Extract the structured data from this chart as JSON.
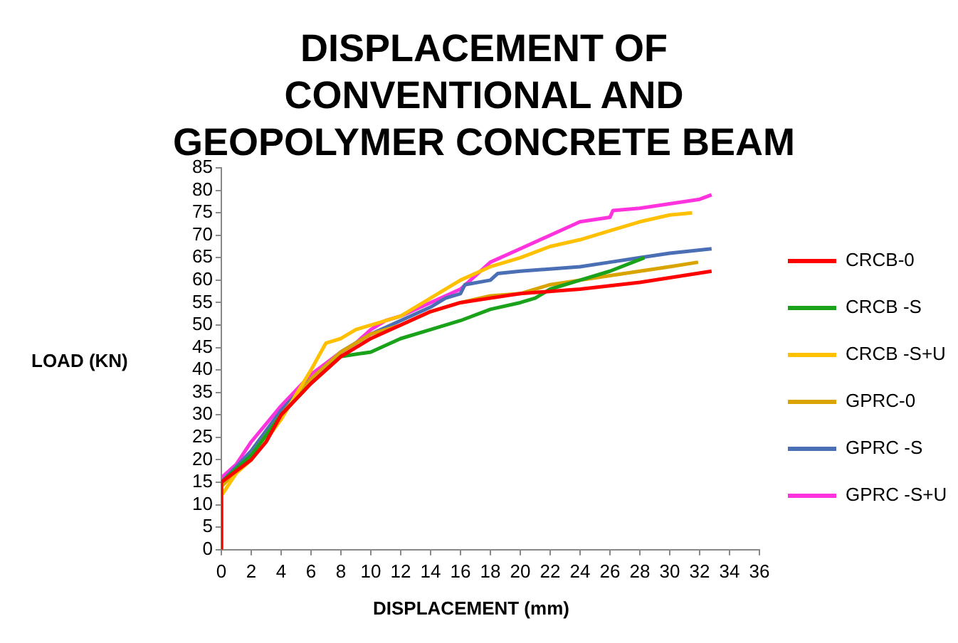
{
  "chart_data": {
    "type": "line",
    "title": "DISPLACEMENT OF CONVENTIONAL AND GEOPOLYMER CONCRETE BEAM",
    "xlabel": "DISPLACEMENT (mm)",
    "ylabel": "LOAD (KN)",
    "xlim": [
      0,
      36
    ],
    "xticks": [
      0,
      2,
      4,
      6,
      8,
      10,
      12,
      14,
      16,
      18,
      20,
      22,
      24,
      26,
      28,
      30,
      32,
      34,
      36
    ],
    "ylim": [
      0,
      85
    ],
    "yticks": [
      0,
      5,
      10,
      15,
      20,
      25,
      30,
      35,
      40,
      45,
      50,
      55,
      60,
      65,
      70,
      75,
      80,
      85
    ],
    "grid": false,
    "legend": "right",
    "marker": "none",
    "line_style": "solid",
    "series": [
      {
        "name": "CRCB-0",
        "color": "#ff0000",
        "x": [
          0,
          0,
          2,
          3,
          4,
          6,
          8,
          10,
          12,
          14,
          16,
          18,
          20,
          24,
          28,
          32.8
        ],
        "values": [
          0,
          15,
          20,
          24,
          30,
          37,
          43,
          47,
          50,
          53,
          55,
          56,
          57,
          58,
          59.5,
          62
        ]
      },
      {
        "name": "CRCB -S",
        "color": "#1aa31a",
        "x": [
          0,
          0,
          2,
          4,
          6,
          8,
          9,
          10,
          12,
          14,
          16,
          18,
          20,
          21,
          22,
          24,
          26,
          28.3
        ],
        "values": [
          0,
          15,
          21,
          30,
          37,
          43,
          43.5,
          44,
          47,
          49,
          51,
          53.5,
          55,
          56,
          58,
          60,
          62,
          65
        ]
      },
      {
        "name": "CRCB -S+U",
        "color": "#ffc000",
        "x": [
          0,
          0,
          1,
          2,
          4,
          6,
          7,
          8,
          9,
          10,
          12,
          14,
          16,
          18,
          20,
          22,
          24,
          26,
          28,
          30,
          31.5
        ],
        "values": [
          0,
          12,
          17,
          20,
          29,
          40,
          46,
          47,
          49,
          50,
          52,
          56,
          60,
          63,
          65,
          67.5,
          69,
          71,
          73,
          74.5,
          75
        ]
      },
      {
        "name": "GPRC-0",
        "color": "#d9a300",
        "x": [
          0,
          0,
          2,
          4,
          6,
          8,
          10,
          12,
          14,
          16,
          18,
          20,
          22,
          24,
          26,
          28,
          30,
          31.9
        ],
        "values": [
          0,
          14,
          21,
          30,
          38,
          44,
          48,
          50,
          53,
          55,
          56.5,
          57,
          59,
          60,
          61,
          62,
          63,
          64
        ]
      },
      {
        "name": "GPRC -S",
        "color": "#4a6fb5",
        "x": [
          0,
          0,
          2,
          4,
          6,
          8,
          10,
          12,
          14,
          15,
          16,
          16.3,
          18,
          18.5,
          20,
          24,
          26,
          28,
          30,
          32.8
        ],
        "values": [
          0,
          15,
          22,
          31,
          38,
          44,
          48,
          51,
          54,
          56,
          57,
          59,
          60,
          61.5,
          62,
          63,
          64,
          65,
          66,
          67
        ]
      },
      {
        "name": "GPRC -S+U",
        "color": "#ff33dd",
        "x": [
          0,
          0,
          1,
          2,
          4,
          6,
          8,
          9,
          10,
          11,
          12,
          14,
          16,
          17,
          18,
          20,
          22,
          24,
          26,
          26.2,
          28,
          30,
          32,
          32.8
        ],
        "values": [
          0,
          16,
          19,
          24,
          32,
          39,
          44,
          46,
          49,
          51,
          52,
          55,
          58,
          61,
          64,
          67,
          70,
          73,
          74,
          75.5,
          76,
          77,
          78,
          79
        ]
      }
    ]
  }
}
